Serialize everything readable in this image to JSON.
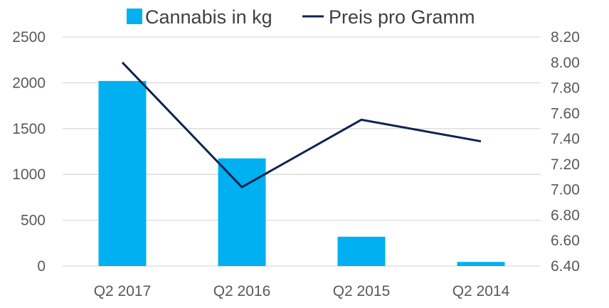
{
  "chart_data": {
    "type": "bar",
    "categories": [
      "Q2 2017",
      "Q2 2016",
      "Q2 2015",
      "Q2 2014"
    ],
    "series": [
      {
        "name": "Cannabis in kg",
        "type": "bar",
        "axis": "left",
        "color": "#00b0f0",
        "values": [
          2020,
          1175,
          320,
          45
        ]
      },
      {
        "name": "Preis pro Gramm",
        "type": "line",
        "axis": "right",
        "color": "#0d2350",
        "values": [
          8.0,
          7.02,
          7.55,
          7.38
        ]
      }
    ],
    "y_left": {
      "min": 0,
      "max": 2500,
      "ticks": [
        "0",
        "500",
        "1000",
        "1500",
        "2000",
        "2500"
      ]
    },
    "y_right": {
      "min": 6.4,
      "max": 8.2,
      "ticks": [
        "6.40",
        "6.60",
        "6.80",
        "7.00",
        "7.20",
        "7.40",
        "7.60",
        "7.80",
        "8.00",
        "8.20"
      ]
    },
    "grid": true,
    "legend_position": "top"
  }
}
